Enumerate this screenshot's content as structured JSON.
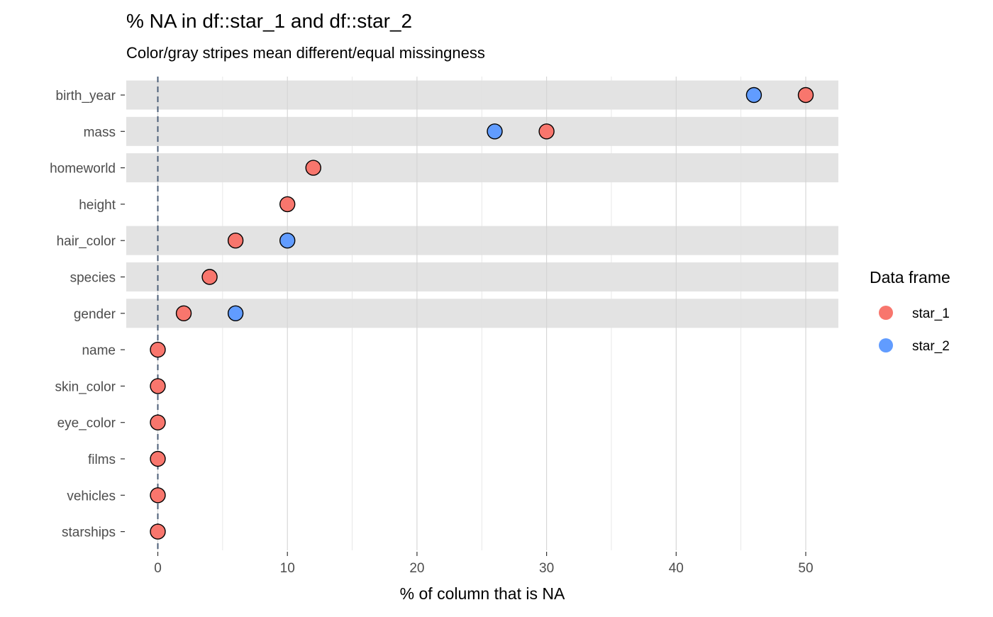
{
  "chart_data": {
    "type": "scatter",
    "title": "% NA in df::star_1 and df::star_2",
    "subtitle": "Color/gray stripes mean different/equal missingness",
    "xlabel": "% of column that is NA",
    "ylabel": "",
    "xlim": [
      -2.5,
      52.5
    ],
    "xticks": [
      0,
      10,
      20,
      30,
      40,
      50
    ],
    "xminor_ticks": [
      5,
      15,
      25,
      35,
      45
    ],
    "reference_line_x": 0,
    "categories": [
      "birth_year",
      "mass",
      "homeworld",
      "height",
      "hair_color",
      "species",
      "gender",
      "name",
      "skin_color",
      "eye_color",
      "films",
      "vehicles",
      "starships"
    ],
    "stripes": [
      "birth_year",
      "mass",
      "homeworld",
      "hair_color",
      "species",
      "gender"
    ],
    "series": [
      {
        "name": "star_1",
        "color": "#F8766D",
        "values": [
          50,
          30,
          12,
          10,
          6,
          4,
          2,
          0,
          0,
          0,
          0,
          0,
          0
        ]
      },
      {
        "name": "star_2",
        "color": "#619CFF",
        "values": [
          46,
          26,
          null,
          null,
          10,
          null,
          6,
          null,
          null,
          null,
          null,
          null,
          null
        ]
      }
    ],
    "legend": {
      "title": "Data frame",
      "position": "right"
    },
    "grid": true
  }
}
